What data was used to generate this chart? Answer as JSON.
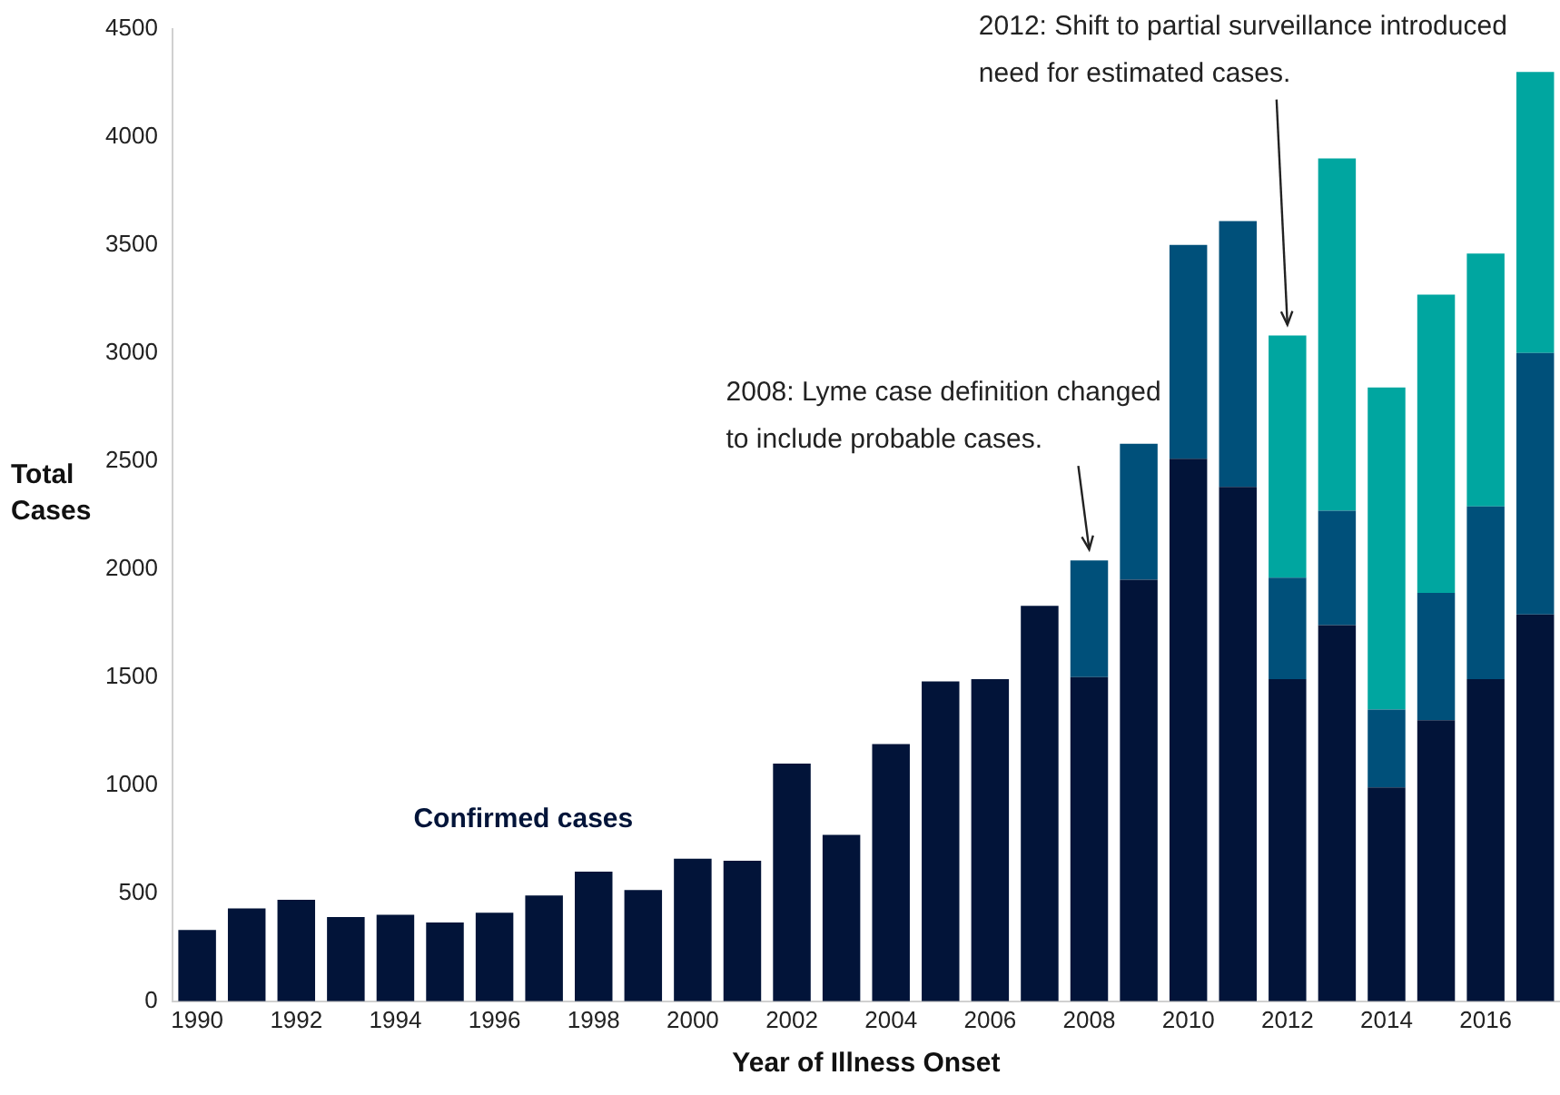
{
  "chart_data": {
    "type": "bar",
    "stacked": true,
    "xlabel": "Year of Illness Onset",
    "ylabel": "Total Cases",
    "categories": [
      "1990",
      null,
      "1992",
      null,
      "1994",
      null,
      "1996",
      null,
      "1998",
      null,
      "2000",
      null,
      "2002",
      null,
      "2004",
      null,
      "2006",
      null,
      "2008",
      null,
      "2010",
      null,
      "2012",
      null,
      "2014",
      null,
      "2016",
      null
    ],
    "series": [
      {
        "name": "Confirmed cases",
        "color": "#021439",
        "values": [
          330,
          430,
          470,
          390,
          400,
          365,
          410,
          490,
          600,
          515,
          660,
          650,
          1100,
          770,
          1190,
          1480,
          1490,
          1830,
          1500,
          1950,
          2510,
          2380,
          1490,
          1740,
          990,
          1300,
          1490,
          1790
        ]
      },
      {
        "color": "#00507a",
        "values": [
          null,
          null,
          null,
          null,
          null,
          null,
          null,
          null,
          null,
          null,
          null,
          null,
          null,
          null,
          null,
          null,
          null,
          null,
          540,
          630,
          990,
          1230,
          470,
          530,
          360,
          590,
          800,
          1210
        ]
      },
      {
        "color": "#00a6a0",
        "values": [
          null,
          null,
          null,
          null,
          null,
          null,
          null,
          null,
          null,
          null,
          null,
          null,
          null,
          null,
          null,
          null,
          null,
          null,
          null,
          null,
          null,
          null,
          1120,
          1630,
          1490,
          1380,
          1170,
          1300
        ]
      }
    ],
    "ylim": [
      0,
      4500
    ],
    "yticks": [
      0,
      500,
      1000,
      1500,
      2000,
      2500,
      3000,
      3500,
      4000,
      4500
    ],
    "grid": false,
    "legend": false,
    "annotations": [
      {
        "text": "2008: Lyme case definition changed to include probable cases.",
        "x": "2008",
        "y": 2040
      },
      {
        "text": "2012: Shift to partial surveillance introduced need for estimated cases.",
        "x": "2012",
        "y": 3080
      }
    ]
  }
}
